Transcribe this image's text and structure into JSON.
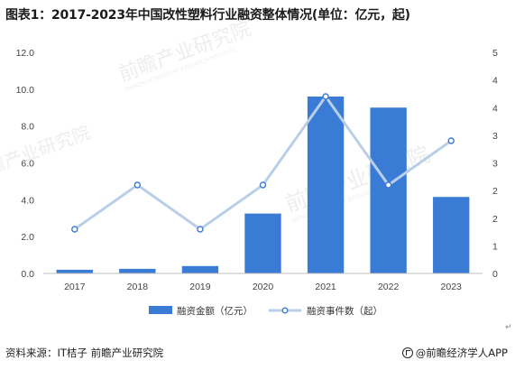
{
  "title": "图表1：2017-2023年中国改性塑料行业融资整体情况(单位：亿元，起)",
  "chart_data": {
    "type": "bar+line",
    "categories": [
      "2017",
      "2018",
      "2019",
      "2020",
      "2021",
      "2022",
      "2023"
    ],
    "series": [
      {
        "name": "融资金额（亿元）",
        "type": "bar",
        "axis": "left",
        "values": [
          0.2,
          0.25,
          0.4,
          3.25,
          9.6,
          9.0,
          4.15
        ],
        "color": "#3a7bd5"
      },
      {
        "name": "融资事件数（起）",
        "type": "line",
        "axis": "right",
        "values": [
          1,
          2,
          1,
          2,
          4,
          2,
          3
        ],
        "color": "#b9cfe8"
      }
    ],
    "ylim_left": [
      0,
      12
    ],
    "yticks_left": [
      "0.0",
      "2.0",
      "4.0",
      "6.0",
      "8.0",
      "10.0",
      "12.0"
    ],
    "ylim_right": [
      0,
      5
    ],
    "yticks_right": [
      "0",
      "1",
      "2",
      "2",
      "3",
      "3",
      "4",
      "4",
      "5"
    ],
    "legend_position": "bottom",
    "grid": false
  },
  "watermark": {
    "brand": "前瞻产业研究院",
    "sub": "QIANZHAN INDUSTRY RESEARCH INSTITUTE"
  },
  "footer": {
    "source": "资料来源：IT桔子 前瞻产业研究院",
    "brand": "@前瞻经济学人APP"
  },
  "return_mark": "↵"
}
